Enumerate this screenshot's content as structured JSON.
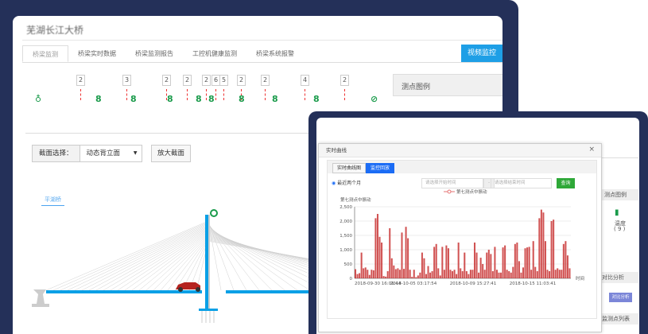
{
  "app": {
    "title": "芜湖长江大桥",
    "tabs": [
      "桥梁监测",
      "桥梁实时数据",
      "桥梁监测报告",
      "工控机健康监测",
      "桥梁系统报警"
    ],
    "video_button": "视频监控"
  },
  "sensors": {
    "counts": [
      "2",
      "3",
      "2",
      "2",
      "2",
      "6",
      "5",
      "2",
      "2",
      "4",
      "2"
    ],
    "legend_title": "测点图例",
    "color": "#1a9b4b"
  },
  "section": {
    "label": "截面选择：",
    "selected": "动态背立面",
    "zoom_button": "放大截面",
    "direction": "平湖桥"
  },
  "right_panel": {
    "sensor_name": "温度",
    "sensor_count": "( 9 )",
    "compare_header": "对比分析",
    "compare_button": "对比分析",
    "list_header": "监测点列表"
  },
  "modal": {
    "title": "实时曲线",
    "close": "×",
    "tabs": [
      "实时曲线图",
      "监控回放"
    ],
    "radio_label": "最近两个月",
    "start_placeholder": "请选择开始时间",
    "separator": "-",
    "end_placeholder": "请选择结束时间",
    "query_button": "查询"
  },
  "chart_data": {
    "type": "bar",
    "legend": "第七测点中振动",
    "ylabel": "第七测点中振动",
    "xlabel": "时间",
    "ylim": [
      0,
      2500
    ],
    "yticks": [
      "0",
      "500",
      "1,000",
      "1,500",
      "2,000",
      "2,500"
    ],
    "xticks": [
      "2018-09-30 16:01:44",
      "2018-10-05 03:17:54",
      "2018-10-09 15:27:41",
      "2018-10-15 11:03:41"
    ],
    "color": "#c62828",
    "values": [
      320,
      150,
      180,
      900,
      350,
      380,
      300,
      120,
      300,
      280,
      2100,
      2250,
      1450,
      1250,
      80,
      60,
      250,
      1750,
      700,
      450,
      320,
      350,
      300,
      1600,
      330,
      1800,
      1400,
      300,
      50,
      300,
      40,
      100,
      200,
      900,
      700,
      150,
      430,
      200,
      250,
      1100,
      1200,
      350,
      100,
      1100,
      300,
      1150,
      1050,
      300,
      250,
      300,
      150,
      1250,
      350,
      250,
      900,
      250,
      150,
      300,
      300,
      1250,
      900,
      200,
      720,
      500,
      300,
      900,
      1000,
      850,
      250,
      1100,
      300,
      200,
      200,
      1080,
      1150,
      300,
      250,
      200,
      400,
      1200,
      1250,
      600,
      200,
      380,
      1050,
      1080,
      1100,
      300,
      1300,
      400,
      250,
      2100,
      2400,
      2300,
      1300,
      300,
      250,
      2000,
      2050,
      300,
      350,
      300,
      300,
      1200,
      1300,
      800,
      350
    ]
  }
}
